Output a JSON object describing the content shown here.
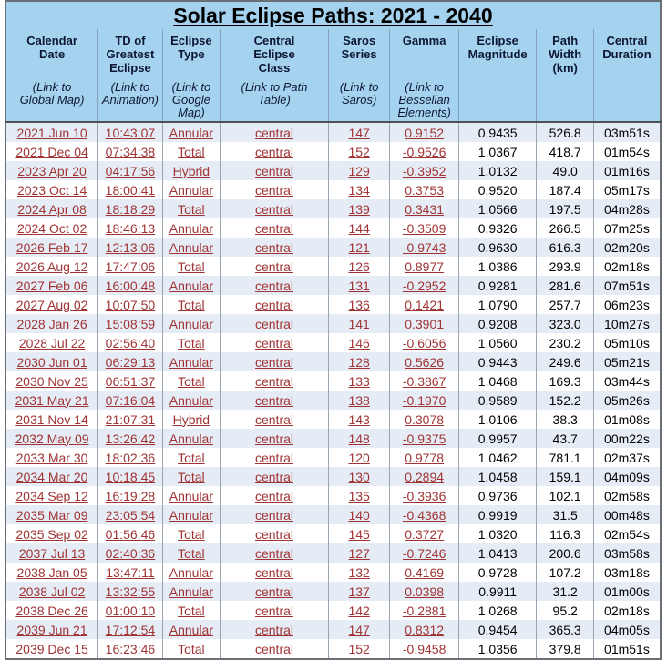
{
  "title": "Solar Eclipse Paths: 2021 - 2040",
  "colors": {
    "header_bg": "#a4d2ef",
    "stripe_row_bg": "#e6ecf6",
    "link_red": "#a03434",
    "header_text": "#0d1733",
    "outer_border": "#6a6f75",
    "inner_border": "#9aa6b2"
  },
  "header": {
    "cols": [
      {
        "title": "Calendar\nDate",
        "note": "(Link to\nGlobal Map)"
      },
      {
        "title": "TD of\nGreatest\nEclipse",
        "note": "(Link to\nAnimation)"
      },
      {
        "title": "Eclipse\nType",
        "note": "(Link to\nGoogle\nMap)"
      },
      {
        "title": "Central\nEclipse\nClass",
        "note": "(Link to Path\nTable)"
      },
      {
        "title": "Saros\nSeries",
        "note": "(Link to\nSaros)"
      },
      {
        "title": "Gamma",
        "note": "(Link to\nBesselian\nElements)"
      },
      {
        "title": "Eclipse\nMagnitude",
        "note": ""
      },
      {
        "title": "Path\nWidth\n(km)",
        "note": ""
      },
      {
        "title": "Central\nDuration",
        "note": ""
      }
    ]
  },
  "table": {
    "col_keys": [
      "date",
      "td",
      "type",
      "class",
      "saros",
      "gamma",
      "magnitude",
      "width",
      "duration"
    ],
    "link_cols": [
      "date",
      "td",
      "type",
      "class",
      "saros",
      "gamma"
    ],
    "rows": [
      {
        "date": "2021 Jun 10",
        "td": "10:43:07",
        "type": "Annular",
        "class": "central",
        "saros": "147",
        "gamma": "0.9152",
        "magnitude": "0.9435",
        "width": "526.8",
        "duration": "03m51s"
      },
      {
        "date": "2021 Dec 04",
        "td": "07:34:38",
        "type": "Total",
        "class": "central",
        "saros": "152",
        "gamma": "-0.9526",
        "magnitude": "1.0367",
        "width": "418.7",
        "duration": "01m54s"
      },
      {
        "date": "2023 Apr 20",
        "td": "04:17:56",
        "type": "Hybrid",
        "class": "central",
        "saros": "129",
        "gamma": "-0.3952",
        "magnitude": "1.0132",
        "width": "49.0",
        "duration": "01m16s"
      },
      {
        "date": "2023 Oct 14",
        "td": "18:00:41",
        "type": "Annular",
        "class": "central",
        "saros": "134",
        "gamma": "0.3753",
        "magnitude": "0.9520",
        "width": "187.4",
        "duration": "05m17s"
      },
      {
        "date": "2024 Apr 08",
        "td": "18:18:29",
        "type": "Total",
        "class": "central",
        "saros": "139",
        "gamma": "0.3431",
        "magnitude": "1.0566",
        "width": "197.5",
        "duration": "04m28s"
      },
      {
        "date": "2024 Oct 02",
        "td": "18:46:13",
        "type": "Annular",
        "class": "central",
        "saros": "144",
        "gamma": "-0.3509",
        "magnitude": "0.9326",
        "width": "266.5",
        "duration": "07m25s"
      },
      {
        "date": "2026 Feb 17",
        "td": "12:13:06",
        "type": "Annular",
        "class": "central",
        "saros": "121",
        "gamma": "-0.9743",
        "magnitude": "0.9630",
        "width": "616.3",
        "duration": "02m20s"
      },
      {
        "date": "2026 Aug 12",
        "td": "17:47:06",
        "type": "Total",
        "class": "central",
        "saros": "126",
        "gamma": "0.8977",
        "magnitude": "1.0386",
        "width": "293.9",
        "duration": "02m18s"
      },
      {
        "date": "2027 Feb 06",
        "td": "16:00:48",
        "type": "Annular",
        "class": "central",
        "saros": "131",
        "gamma": "-0.2952",
        "magnitude": "0.9281",
        "width": "281.6",
        "duration": "07m51s"
      },
      {
        "date": "2027 Aug 02",
        "td": "10:07:50",
        "type": "Total",
        "class": "central",
        "saros": "136",
        "gamma": "0.1421",
        "magnitude": "1.0790",
        "width": "257.7",
        "duration": "06m23s"
      },
      {
        "date": "2028 Jan 26",
        "td": "15:08:59",
        "type": "Annular",
        "class": "central",
        "saros": "141",
        "gamma": "0.3901",
        "magnitude": "0.9208",
        "width": "323.0",
        "duration": "10m27s"
      },
      {
        "date": "2028 Jul 22",
        "td": "02:56:40",
        "type": "Total",
        "class": "central",
        "saros": "146",
        "gamma": "-0.6056",
        "magnitude": "1.0560",
        "width": "230.2",
        "duration": "05m10s"
      },
      {
        "date": "2030 Jun 01",
        "td": "06:29:13",
        "type": "Annular",
        "class": "central",
        "saros": "128",
        "gamma": "0.5626",
        "magnitude": "0.9443",
        "width": "249.6",
        "duration": "05m21s"
      },
      {
        "date": "2030 Nov 25",
        "td": "06:51:37",
        "type": "Total",
        "class": "central",
        "saros": "133",
        "gamma": "-0.3867",
        "magnitude": "1.0468",
        "width": "169.3",
        "duration": "03m44s"
      },
      {
        "date": "2031 May 21",
        "td": "07:16:04",
        "type": "Annular",
        "class": "central",
        "saros": "138",
        "gamma": "-0.1970",
        "magnitude": "0.9589",
        "width": "152.2",
        "duration": "05m26s"
      },
      {
        "date": "2031 Nov 14",
        "td": "21:07:31",
        "type": "Hybrid",
        "class": "central",
        "saros": "143",
        "gamma": "0.3078",
        "magnitude": "1.0106",
        "width": "38.3",
        "duration": "01m08s"
      },
      {
        "date": "2032 May 09",
        "td": "13:26:42",
        "type": "Annular",
        "class": "central",
        "saros": "148",
        "gamma": "-0.9375",
        "magnitude": "0.9957",
        "width": "43.7",
        "duration": "00m22s"
      },
      {
        "date": "2033 Mar 30",
        "td": "18:02:36",
        "type": "Total",
        "class": "central",
        "saros": "120",
        "gamma": "0.9778",
        "magnitude": "1.0462",
        "width": "781.1",
        "duration": "02m37s"
      },
      {
        "date": "2034 Mar 20",
        "td": "10:18:45",
        "type": "Total",
        "class": "central",
        "saros": "130",
        "gamma": "0.2894",
        "magnitude": "1.0458",
        "width": "159.1",
        "duration": "04m09s"
      },
      {
        "date": "2034 Sep 12",
        "td": "16:19:28",
        "type": "Annular",
        "class": "central",
        "saros": "135",
        "gamma": "-0.3936",
        "magnitude": "0.9736",
        "width": "102.1",
        "duration": "02m58s"
      },
      {
        "date": "2035 Mar 09",
        "td": "23:05:54",
        "type": "Annular",
        "class": "central",
        "saros": "140",
        "gamma": "-0.4368",
        "magnitude": "0.9919",
        "width": "31.5",
        "duration": "00m48s"
      },
      {
        "date": "2035 Sep 02",
        "td": "01:56:46",
        "type": "Total",
        "class": "central",
        "saros": "145",
        "gamma": "0.3727",
        "magnitude": "1.0320",
        "width": "116.3",
        "duration": "02m54s"
      },
      {
        "date": "2037 Jul 13",
        "td": "02:40:36",
        "type": "Total",
        "class": "central",
        "saros": "127",
        "gamma": "-0.7246",
        "magnitude": "1.0413",
        "width": "200.6",
        "duration": "03m58s"
      },
      {
        "date": "2038 Jan 05",
        "td": "13:47:11",
        "type": "Annular",
        "class": "central",
        "saros": "132",
        "gamma": "0.4169",
        "magnitude": "0.9728",
        "width": "107.2",
        "duration": "03m18s"
      },
      {
        "date": "2038 Jul 02",
        "td": "13:32:55",
        "type": "Annular",
        "class": "central",
        "saros": "137",
        "gamma": "0.0398",
        "magnitude": "0.9911",
        "width": "31.2",
        "duration": "01m00s"
      },
      {
        "date": "2038 Dec 26",
        "td": "01:00:10",
        "type": "Total",
        "class": "central",
        "saros": "142",
        "gamma": "-0.2881",
        "magnitude": "1.0268",
        "width": "95.2",
        "duration": "02m18s"
      },
      {
        "date": "2039 Jun 21",
        "td": "17:12:54",
        "type": "Annular",
        "class": "central",
        "saros": "147",
        "gamma": "0.8312",
        "magnitude": "0.9454",
        "width": "365.3",
        "duration": "04m05s"
      },
      {
        "date": "2039 Dec 15",
        "td": "16:23:46",
        "type": "Total",
        "class": "central",
        "saros": "152",
        "gamma": "-0.9458",
        "magnitude": "1.0356",
        "width": "379.8",
        "duration": "01m51s"
      }
    ]
  }
}
